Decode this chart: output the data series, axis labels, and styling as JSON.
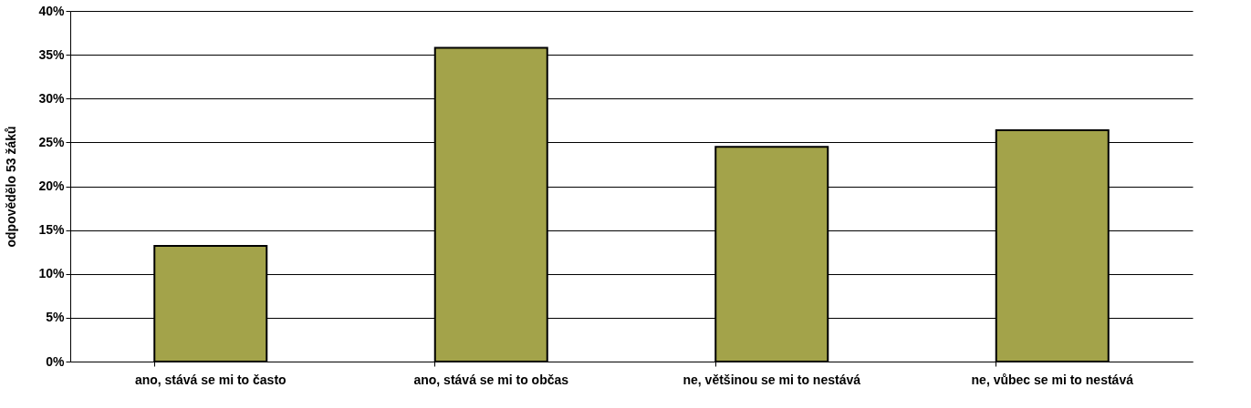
{
  "chart_data": {
    "type": "bar",
    "ylabel": "odpovědělo 53 žáků",
    "categories": [
      "ano, stává se mi to často",
      "ano, stává se mi to občas",
      "ne, většinou se mi to nestává",
      "ne, vůbec se mi to nestává"
    ],
    "values": [
      13.2,
      35.8,
      24.5,
      26.4
    ],
    "color": "#a3a34a",
    "ylim": [
      0,
      40
    ],
    "yticks": [
      {
        "value": 0,
        "label": "0%"
      },
      {
        "value": 5,
        "label": "5%"
      },
      {
        "value": 10,
        "label": "10%"
      },
      {
        "value": 15,
        "label": "15%"
      },
      {
        "value": 20,
        "label": "20%"
      },
      {
        "value": 25,
        "label": "25%"
      },
      {
        "value": 30,
        "label": "30%"
      },
      {
        "value": 35,
        "label": "35%"
      },
      {
        "value": 40,
        "label": "40%"
      }
    ],
    "grid": "y"
  }
}
